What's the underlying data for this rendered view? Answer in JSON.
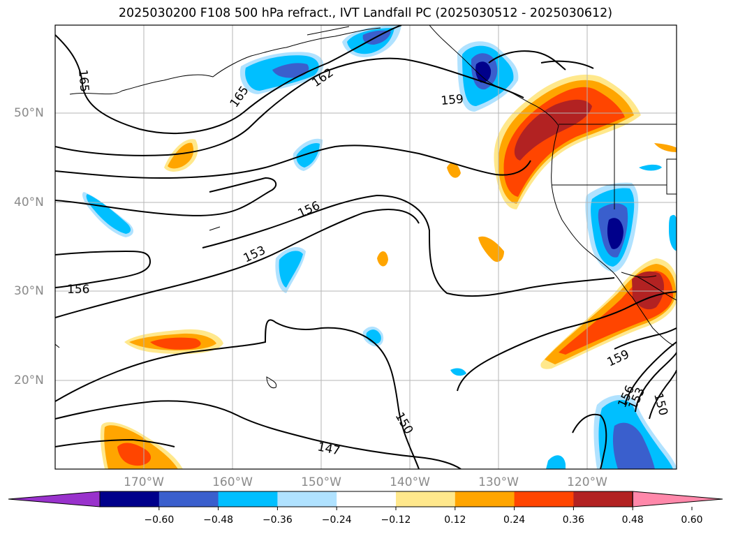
{
  "title": "2025030200 F108 500 hPa refract., IVT Landfall PC (2025030512 - 2025030612)",
  "lat_labels": [
    "50°N",
    "40°N",
    "30°N",
    "20°N"
  ],
  "lon_labels": [
    "170°W",
    "160°W",
    "150°W",
    "140°W",
    "130°W",
    "120°W"
  ],
  "contour_labels": [
    "165",
    "165",
    "162",
    "159",
    "156",
    "153",
    "156",
    "150",
    "147",
    "159",
    "156",
    "153",
    "150"
  ],
  "colorbar": {
    "ticks": [
      "−0.60",
      "−0.48",
      "−0.36",
      "−0.24",
      "−0.12",
      "0.12",
      "0.24",
      "0.36",
      "0.48",
      "0.60"
    ],
    "colors": [
      "#9932cc",
      "#00008b",
      "#3a5fcd",
      "#00bfff",
      "#b0e2ff",
      "#ffffff",
      "#ffe88c",
      "#ffa500",
      "#ff4500",
      "#b22222",
      "#ff88aa"
    ]
  }
}
